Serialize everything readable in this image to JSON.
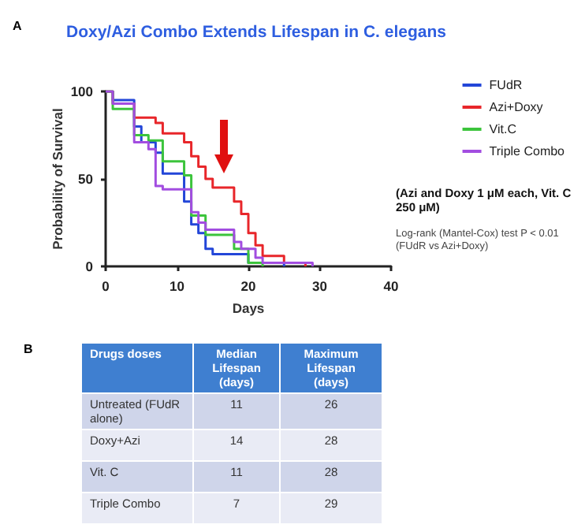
{
  "chart_data": [
    {
      "type": "step",
      "title": "Doxy/Azi Combo Extends Lifespan in C. elegans",
      "xlabel": "Days",
      "ylabel": "Probability of Survival",
      "xlim": [
        0,
        40
      ],
      "xticks": [
        0,
        10,
        20,
        30,
        40
      ],
      "ylim": [
        0,
        100
      ],
      "yticks": [
        0,
        50,
        100
      ],
      "grid": false,
      "legend": "top right",
      "marker": "none",
      "line_style": "solid",
      "annotations": [
        "A",
        "(Azi and Doxy 1 μM each, Vit. C 250 μM)",
        "Log-rank (Mantel-Cox) test P < 0.01  (FUdR vs Azi+Doxy)"
      ],
      "series": [
        {
          "name": "FUdR",
          "color": "#2346d8",
          "x": [
            0,
            1,
            4,
            5,
            7,
            8,
            11,
            12,
            13,
            14,
            15,
            20,
            25
          ],
          "values": [
            100,
            95,
            80,
            71,
            65,
            53,
            37,
            24,
            19,
            10,
            7,
            2,
            0
          ]
        },
        {
          "name": "Azi+Doxy",
          "color": "#e8262a",
          "x": [
            0,
            1,
            4,
            7,
            8,
            11,
            12,
            13,
            14,
            15,
            18,
            19,
            20,
            21,
            22,
            25,
            28
          ],
          "values": [
            100,
            93,
            85,
            82,
            76,
            71,
            63,
            57,
            50,
            45,
            37,
            30,
            19,
            12,
            6,
            2,
            0
          ]
        },
        {
          "name": "Vit.C",
          "color": "#3cc43c",
          "x": [
            0,
            1,
            4,
            6,
            8,
            11,
            12,
            14,
            18,
            20,
            22
          ],
          "values": [
            100,
            90,
            75,
            72,
            60,
            52,
            29,
            18,
            10,
            2,
            0
          ]
        },
        {
          "name": "Triple Combo",
          "color": "#a24de0",
          "x": [
            0,
            1,
            4,
            6,
            7,
            8,
            12,
            13,
            14,
            18,
            19,
            21,
            22,
            29
          ],
          "values": [
            100,
            93,
            71,
            67,
            46,
            44,
            31,
            25,
            21,
            14,
            10,
            5,
            2,
            0
          ]
        }
      ]
    },
    {
      "type": "other",
      "annotations": [
        "B"
      ],
      "xlabel": "Drugs doses",
      "categories": [
        "Untreated (FUdR alone)",
        "Doxy+Azi",
        "Vit. C",
        "Triple Combo"
      ],
      "data_labels": true,
      "series": [
        {
          "name": "Median Lifespan (days)",
          "colors": [
            "#cfd5ea",
            "#e9ebf5",
            "#cfd5ea",
            "#e9ebf5"
          ],
          "values": [
            11,
            14,
            11,
            7
          ]
        },
        {
          "name": "Maximum Lifespan (days)",
          "colors": [
            "#cfd5ea",
            "#e9ebf5",
            "#cfd5ea",
            "#e9ebf5"
          ],
          "values": [
            26,
            28,
            28,
            29
          ]
        }
      ]
    }
  ]
}
